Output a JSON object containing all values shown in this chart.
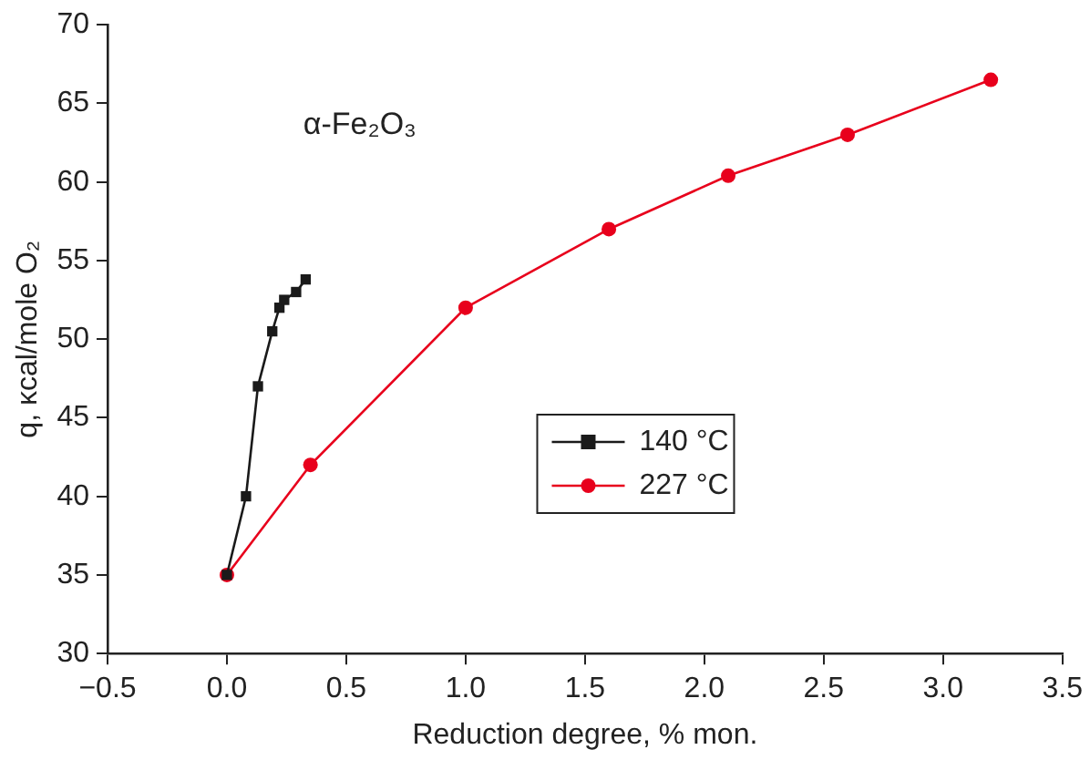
{
  "chart_data": {
    "type": "line",
    "xlabel": "Reduction degree, % mon.",
    "ylabel": "q, κcal/mole O₂",
    "annotations": [
      "α-Fe₂O₃"
    ],
    "series": [
      {
        "name": "140 °C",
        "color": "#1a1a1a",
        "marker": "square",
        "x": [
          0,
          0.08,
          0.13,
          0.19,
          0.22,
          0.24,
          0.29,
          0.33
        ],
        "values": [
          35,
          40,
          47,
          50.5,
          52,
          52.5,
          53,
          53.8
        ]
      },
      {
        "name": "227 °C",
        "color": "#e8001c",
        "marker": "circle",
        "x": [
          0,
          0.35,
          1,
          1.6,
          2.1,
          2.6,
          3.2
        ],
        "values": [
          35,
          42,
          52,
          57,
          60.4,
          63,
          66.5
        ]
      }
    ],
    "xlim": [
      -0.5,
      3.5
    ],
    "xticks": [
      {
        "value": -0.5,
        "label": "−0.5"
      },
      {
        "value": 0,
        "label": "0.0"
      },
      {
        "value": 0.5,
        "label": "0.5"
      },
      {
        "value": 1,
        "label": "1.0"
      },
      {
        "value": 1.5,
        "label": "1.5"
      },
      {
        "value": 2,
        "label": "2.0"
      },
      {
        "value": 2.5,
        "label": "2.5"
      },
      {
        "value": 3,
        "label": "3.0"
      },
      {
        "value": 3.5,
        "label": "3.5"
      }
    ],
    "ylim": [
      30,
      70
    ],
    "yticks": [
      30,
      35,
      40,
      45,
      50,
      55,
      60,
      65,
      70
    ],
    "grid": false,
    "legend": "center",
    "line_style": "solid"
  }
}
